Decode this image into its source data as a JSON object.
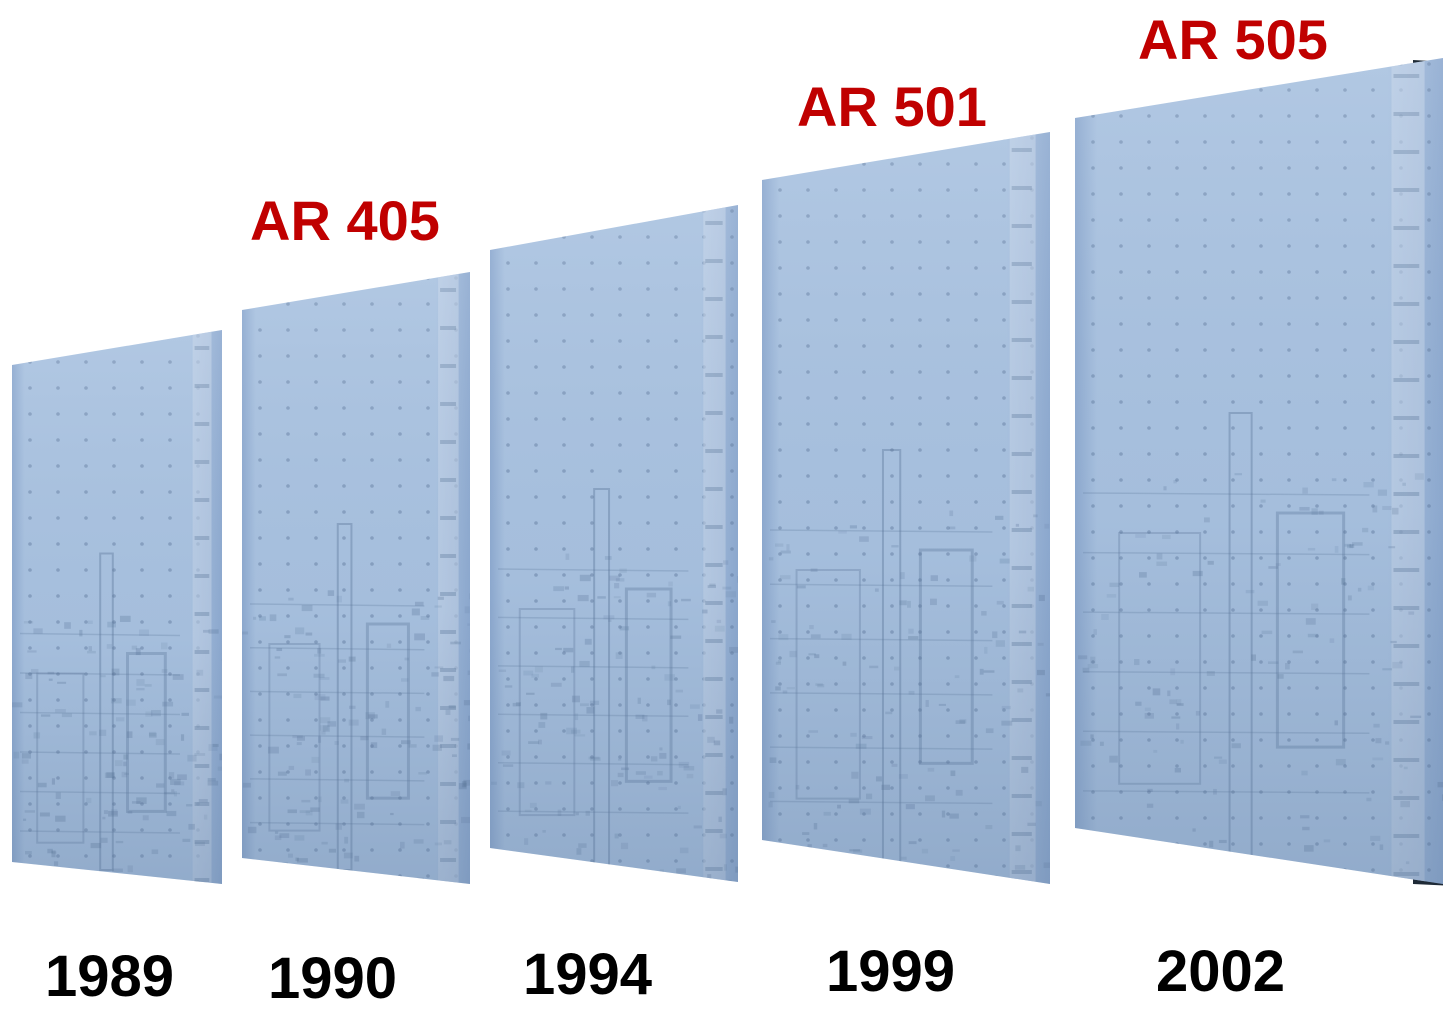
{
  "colors": {
    "model_label": "#c00000",
    "year_label": "#000000",
    "panel_light": "#a9c2e0",
    "panel_mid": "#8eaad0",
    "panel_dark": "#5a7598",
    "panel_edge_shadow": "#1e2a36"
  },
  "panels": [
    {
      "year": "1989",
      "model": ""
    },
    {
      "year": "1990",
      "model": "AR 405"
    },
    {
      "year": "1994",
      "model": ""
    },
    {
      "year": "1999",
      "model": "AR 501"
    },
    {
      "year": "2002",
      "model": "AR 505"
    }
  ]
}
